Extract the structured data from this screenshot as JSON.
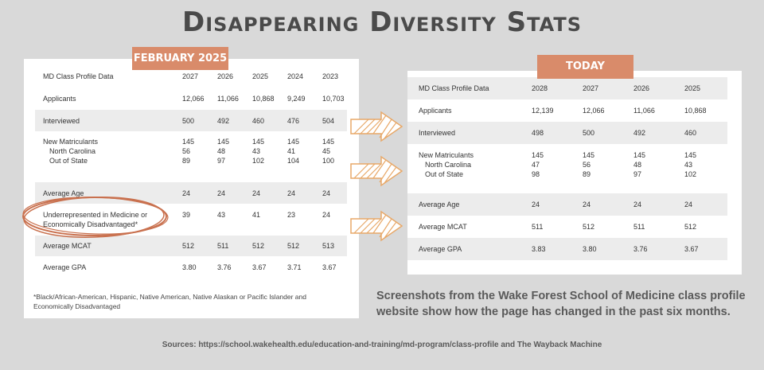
{
  "title": "Disappearing Diversity Stats",
  "left": {
    "badge": "FEBRUARY 2025",
    "header": [
      "MD Class Profile Data",
      "2027",
      "2026",
      "2025",
      "2024",
      "2023"
    ],
    "applicants": {
      "label": "Applicants",
      "values": [
        "12,066",
        "11,066",
        "10,868",
        "9,249",
        "10,703"
      ]
    },
    "interviewed": {
      "label": "Interviewed",
      "values": [
        "500",
        "492",
        "460",
        "476",
        "504"
      ]
    },
    "matriculants": {
      "label": "New Matriculants",
      "nc_label": "North Carolina",
      "oos_label": "Out of State",
      "total": [
        "145",
        "145",
        "145",
        "145",
        "145"
      ],
      "nc": [
        "56",
        "48",
        "43",
        "41",
        "45"
      ],
      "oos": [
        "89",
        "97",
        "102",
        "104",
        "100"
      ]
    },
    "age": {
      "label": "Average Age",
      "values": [
        "24",
        "24",
        "24",
        "24",
        "24"
      ]
    },
    "urm": {
      "label_1": "Underrepresented in Medicine or",
      "label_2": "Economically Disadvantaged*",
      "values": [
        "39",
        "43",
        "41",
        "23",
        "24"
      ]
    },
    "mcat": {
      "label": "Average MCAT",
      "values": [
        "512",
        "511",
        "512",
        "512",
        "513"
      ]
    },
    "gpa": {
      "label": "Average GPA",
      "values": [
        "3.80",
        "3.76",
        "3.67",
        "3.71",
        "3.67"
      ]
    },
    "footnote": "*Black/African-American, Hispanic, Native American, Native Alaskan or Pacific Islander and Economically Disadvantaged"
  },
  "right": {
    "badge": "TODAY",
    "header": [
      "MD Class Profile Data",
      "2028",
      "2027",
      "2026",
      "2025"
    ],
    "applicants": {
      "label": "Applicants",
      "values": [
        "12,139",
        "12,066",
        "11,066",
        "10,868"
      ]
    },
    "interviewed": {
      "label": "Interviewed",
      "values": [
        "498",
        "500",
        "492",
        "460"
      ]
    },
    "matriculants": {
      "label": "New Matriculants",
      "nc_label": "North Carolina",
      "oos_label": "Out of State",
      "total": [
        "145",
        "145",
        "145",
        "145"
      ],
      "nc": [
        "47",
        "56",
        "48",
        "43"
      ],
      "oos": [
        "98",
        "89",
        "97",
        "102"
      ]
    },
    "age": {
      "label": "Average Age",
      "values": [
        "24",
        "24",
        "24",
        "24"
      ]
    },
    "mcat": {
      "label": "Average MCAT",
      "values": [
        "511",
        "512",
        "511",
        "512"
      ]
    },
    "gpa": {
      "label": "Average GPA",
      "values": [
        "3.83",
        "3.80",
        "3.76",
        "3.67"
      ]
    }
  },
  "caption": "Screenshots from the Wake Forest School of Medicine class profile website show how the page has changed in the past six months.",
  "sources": "Sources: https://school.wakehealth.edu/education-and-training/md-program/class-profile and The Wayback Machine",
  "colors": {
    "accent": "#d98b6a",
    "arrow": "#e8a868",
    "circle": "#c9714f",
    "background": "#d9d9d9"
  }
}
